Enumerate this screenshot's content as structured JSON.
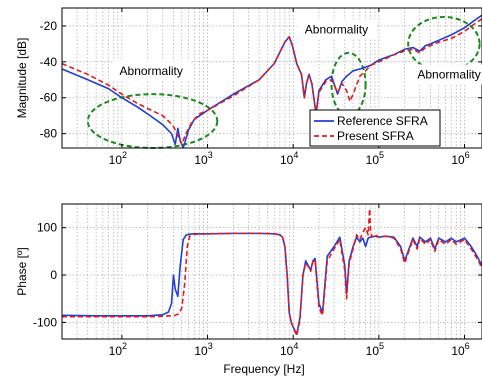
{
  "chart_data": [
    {
      "type": "line",
      "title": "",
      "xlabel": "",
      "ylabel": "Magnitude [dB]",
      "x_scale": "log",
      "xlim": [
        20,
        1600000
      ],
      "ylim": [
        -88,
        -10
      ],
      "grid": true,
      "xticks": [
        100,
        1000,
        10000,
        100000,
        1000000
      ],
      "xtick_labels": [
        "10",
        "10",
        "10",
        "10",
        "10"
      ],
      "xtick_exponents": [
        "2",
        "3",
        "4",
        "5",
        "6"
      ],
      "yticks": [
        -80,
        -60,
        -40,
        -20
      ],
      "ytick_labels": [
        "-80",
        "-60",
        "-40",
        "-20"
      ],
      "legend": {
        "placement": "bottom-right",
        "entries": [
          "Reference SFRA",
          "Present SFRA"
        ]
      },
      "annotations": [
        {
          "text": "Abnormality",
          "x": 220,
          "y": -45
        },
        {
          "text": "Abnormality",
          "x": 32000,
          "y": -22
        },
        {
          "text": "Abnormality",
          "x": 660000,
          "y": -47
        }
      ],
      "abnormal_regions": [
        {
          "x": [
            40,
            1300
          ],
          "y": [
            -88,
            -58
          ]
        },
        {
          "x": [
            28000,
            70000
          ],
          "y": [
            -70,
            -35
          ]
        },
        {
          "x": [
            220000,
            1500000
          ],
          "y": [
            -45,
            -15
          ]
        }
      ],
      "series": [
        {
          "name": "Reference SFRA",
          "color": "#1f3fd8",
          "style": "solid",
          "x": [
            20,
            40,
            70,
            100,
            150,
            200,
            300,
            380,
            420,
            450,
            480,
            520,
            600,
            700,
            1000,
            2000,
            4000,
            6000,
            8000,
            9000,
            9800,
            11000,
            12500,
            13500,
            14300,
            15300,
            16500,
            18500,
            20000,
            24000,
            28000,
            33000,
            37000,
            42000,
            50000,
            60000,
            80000,
            100000,
            150000,
            200000,
            250000,
            300000,
            350000,
            400000,
            500000,
            700000,
            1000000,
            1300000,
            1600000
          ],
          "y": [
            -44,
            -50,
            -55,
            -60,
            -65,
            -69,
            -75,
            -80,
            -86,
            -77,
            -84,
            -88,
            -78,
            -72,
            -67,
            -58,
            -50,
            -41,
            -29,
            -26,
            -31,
            -41,
            -47,
            -60,
            -52,
            -47,
            -52,
            -69,
            -56,
            -50,
            -48,
            -58,
            -51,
            -48,
            -45,
            -44,
            -42,
            -39,
            -36,
            -33,
            -32,
            -34,
            -31,
            -30,
            -28,
            -25,
            -21,
            -17,
            -14
          ]
        },
        {
          "name": "Present SFRA",
          "color": "#e41a1c",
          "style": "dashed",
          "x": [
            20,
            40,
            70,
            100,
            150,
            200,
            300,
            350,
            400,
            430,
            460,
            500,
            560,
            650,
            800,
            1000,
            2000,
            4000,
            6000,
            8000,
            9000,
            9800,
            11000,
            12500,
            13500,
            14300,
            15300,
            16500,
            18500,
            20000,
            24000,
            28000,
            33000,
            37000,
            42000,
            46000,
            50000,
            60000,
            70000,
            80000,
            100000,
            150000,
            200000,
            250000,
            300000,
            350000,
            400000,
            500000,
            700000,
            1000000,
            1300000,
            1600000
          ],
          "y": [
            -41,
            -47,
            -53,
            -58,
            -63,
            -66,
            -70,
            -73,
            -76,
            -79,
            -82,
            -86,
            -80,
            -74,
            -69,
            -67,
            -59,
            -50,
            -41,
            -29,
            -26,
            -31,
            -41,
            -47,
            -60,
            -52,
            -47,
            -52,
            -69,
            -57,
            -51,
            -50,
            -57,
            -52,
            -56,
            -62,
            -58,
            -48,
            -45,
            -42,
            -40,
            -36,
            -34,
            -33,
            -35,
            -32,
            -31,
            -29,
            -27,
            -23,
            -19,
            -16
          ]
        }
      ]
    },
    {
      "type": "line",
      "title": "",
      "xlabel": "Frequency [Hz]",
      "ylabel": "Phase [º]",
      "x_scale": "log",
      "xlim": [
        20,
        1600000
      ],
      "ylim": [
        -135,
        150
      ],
      "grid": true,
      "xticks": [
        100,
        1000,
        10000,
        100000,
        1000000
      ],
      "xtick_labels": [
        "10",
        "10",
        "10",
        "10",
        "10"
      ],
      "xtick_exponents": [
        "2",
        "3",
        "4",
        "5",
        "6"
      ],
      "yticks": [
        -100,
        0,
        100
      ],
      "ytick_labels": [
        "-100",
        "0",
        "100"
      ],
      "series": [
        {
          "name": "Reference SFRA",
          "color": "#1f3fd8",
          "style": "solid",
          "x": [
            20,
            50,
            100,
            200,
            300,
            350,
            380,
            400,
            420,
            450,
            480,
            520,
            560,
            600,
            700,
            1000,
            2000,
            4000,
            6000,
            7000,
            7500,
            8000,
            8500,
            9000,
            9500,
            10000,
            11000,
            12000,
            13000,
            14000,
            15000,
            16000,
            17000,
            18000,
            20000,
            22000,
            25000,
            30000,
            35000,
            40000,
            42000,
            45000,
            50000,
            55000,
            60000,
            65000,
            70000,
            75000,
            80000,
            90000,
            100000,
            120000,
            150000,
            180000,
            200000,
            250000,
            280000,
            300000,
            350000,
            400000,
            450000,
            500000,
            600000,
            700000,
            800000,
            1000000,
            1200000,
            1400000,
            1600000
          ],
          "y": [
            -85,
            -86,
            -86,
            -86,
            -84,
            -78,
            -60,
            0,
            -30,
            -45,
            20,
            75,
            84,
            86,
            87,
            87,
            88,
            88,
            87,
            85,
            80,
            60,
            0,
            -80,
            -100,
            -110,
            -125,
            -90,
            0,
            30,
            20,
            10,
            30,
            35,
            -60,
            -80,
            40,
            60,
            80,
            20,
            -40,
            30,
            60,
            80,
            70,
            78,
            60,
            78,
            80,
            82,
            80,
            82,
            80,
            60,
            30,
            78,
            60,
            80,
            70,
            78,
            55,
            78,
            70,
            78,
            70,
            78,
            60,
            40,
            20
          ]
        },
        {
          "name": "Present SFRA",
          "color": "#e41a1c",
          "style": "dashed",
          "x": [
            20,
            50,
            100,
            200,
            300,
            380,
            420,
            460,
            500,
            540,
            580,
            620,
            700,
            1000,
            2000,
            4000,
            6000,
            7000,
            7500,
            8000,
            8500,
            9000,
            9500,
            10000,
            11000,
            12000,
            13000,
            14000,
            15000,
            16000,
            17000,
            18000,
            20000,
            22000,
            25000,
            30000,
            35000,
            40000,
            42000,
            45000,
            50000,
            55000,
            60000,
            65000,
            70000,
            75000,
            78000,
            80000,
            83000,
            90000,
            100000,
            120000,
            150000,
            180000,
            200000,
            250000,
            280000,
            300000,
            350000,
            400000,
            450000,
            500000,
            600000,
            700000,
            800000,
            1000000,
            1200000,
            1400000,
            1600000
          ],
          "y": [
            -88,
            -88,
            -88,
            -88,
            -87,
            -86,
            -85,
            -82,
            -70,
            -20,
            60,
            82,
            86,
            87,
            88,
            88,
            87,
            85,
            80,
            60,
            0,
            -80,
            -100,
            -110,
            -128,
            -95,
            0,
            25,
            18,
            8,
            28,
            32,
            -70,
            -85,
            30,
            55,
            75,
            10,
            -50,
            25,
            55,
            85,
            75,
            90,
            100,
            85,
            140,
            95,
            80,
            85,
            80,
            82,
            78,
            55,
            25,
            75,
            55,
            78,
            65,
            75,
            50,
            75,
            65,
            75,
            65,
            75,
            55,
            35,
            15
          ]
        }
      ]
    }
  ]
}
